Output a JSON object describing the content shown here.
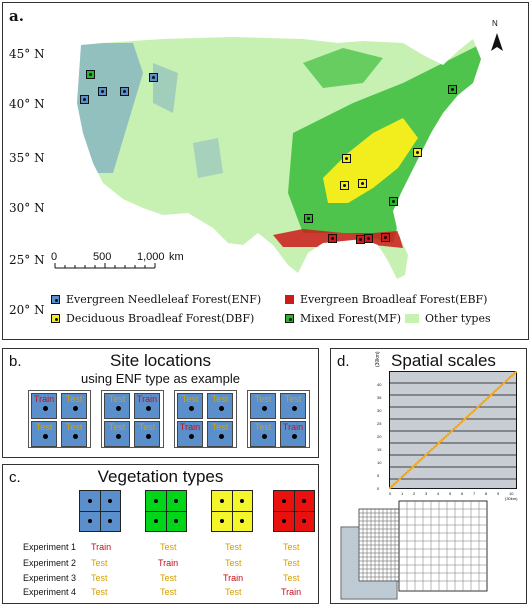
{
  "panel_a": {
    "label": "a.",
    "north": "N",
    "lat_labels": [
      "45° N",
      "40° N",
      "35° N",
      "30° N",
      "25° N",
      "20° N"
    ],
    "scale": [
      "0",
      "500",
      "1,000",
      "km"
    ],
    "legend": [
      {
        "text": "Evergreen Needleleaf Forest(ENF)",
        "color": "#5b8fcc"
      },
      {
        "text": "Evergreen Broadleaf Forest(EBF)",
        "color": "#cc1b1b"
      },
      {
        "text": "Deciduous Broadleaf Forest(DBF)",
        "color": "#f2ee1e"
      },
      {
        "text": "Mixed Forest(MF)",
        "color": "#27b52a"
      },
      {
        "text": "Other types",
        "color": "#c7f0b3"
      }
    ]
  },
  "panel_b": {
    "label": "b.",
    "title": "Site locations",
    "subtitle": "using ENF type as example",
    "groups": [
      {
        "cells": [
          "Train",
          "Test",
          "Test",
          "Test"
        ]
      },
      {
        "cells": [
          "Test",
          "Train",
          "Test",
          "Test"
        ]
      },
      {
        "cells": [
          "Test",
          "Test",
          "Train",
          "Test"
        ]
      },
      {
        "cells": [
          "Test",
          "Test",
          "Test",
          "Train"
        ]
      }
    ]
  },
  "panel_c": {
    "label": "c.",
    "title": "Vegetation types",
    "types": [
      {
        "color": "#5b8fcc"
      },
      {
        "color": "#00d51a"
      },
      {
        "color": "#f4f52a"
      },
      {
        "color": "#e8110e"
      }
    ],
    "experiments": [
      {
        "name": "Experiment 1",
        "values": [
          "Train",
          "Test",
          "Test",
          "Test"
        ]
      },
      {
        "name": "Experiment 2",
        "values": [
          "Test",
          "Train",
          "Test",
          "Test"
        ]
      },
      {
        "name": "Experiment 3",
        "values": [
          "Test",
          "Test",
          "Train",
          "Test"
        ]
      },
      {
        "name": "Experiment 4",
        "values": [
          "Test",
          "Test",
          "Test",
          "Train"
        ]
      }
    ]
  },
  "panel_d": {
    "label": "d.",
    "title": "Spatial scales",
    "unit_top": "(30km)",
    "unit_side": "(30km)",
    "y_ticks": [
      "40",
      "35",
      "30",
      "25",
      "20",
      "15",
      "10",
      "5",
      "0"
    ],
    "x_ticks": [
      "0",
      "1",
      "2",
      "3",
      "4",
      "5",
      "6",
      "7",
      "8",
      "9",
      "10"
    ]
  },
  "colors": {
    "enf": "#5b8fcc",
    "ebf": "#cc1b1b",
    "dbf": "#f2ee1e",
    "mf": "#27b52a",
    "other": "#c7f0b3",
    "train": "#c0101a",
    "test": "#d4a000"
  }
}
